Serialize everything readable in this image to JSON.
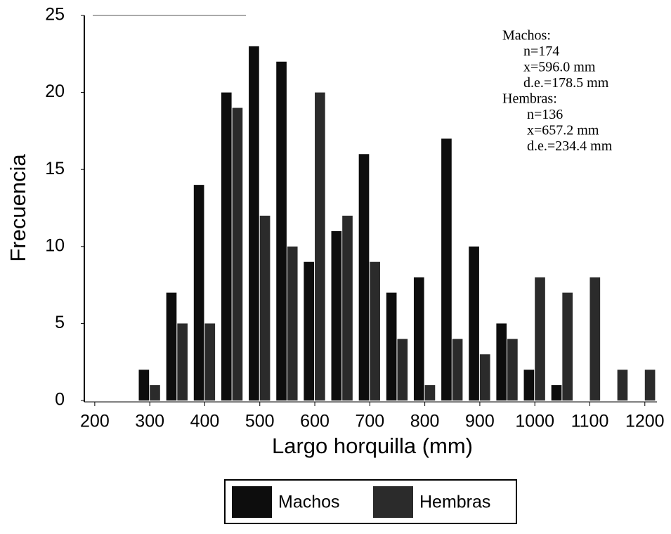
{
  "chart_data": {
    "type": "bar",
    "x": [
      300,
      350,
      400,
      450,
      500,
      550,
      600,
      650,
      700,
      750,
      800,
      850,
      900,
      950,
      1000,
      1050,
      1100,
      1150,
      1200
    ],
    "series": [
      {
        "name": "Machos",
        "color": "#0d0d0d",
        "values": [
          2,
          7,
          14,
          20,
          23,
          22,
          9,
          11,
          16,
          7,
          8,
          17,
          10,
          5,
          2,
          1,
          0,
          0,
          0
        ]
      },
      {
        "name": "Hembras",
        "color": "#2b2b2b",
        "values": [
          1,
          5,
          5,
          19,
          12,
          10,
          20,
          12,
          9,
          4,
          1,
          4,
          3,
          4,
          8,
          7,
          8,
          2,
          2
        ]
      }
    ],
    "xlim": [
      181,
      1222
    ],
    "ylim": [
      0,
      25
    ],
    "xticks": [
      200,
      300,
      400,
      500,
      600,
      700,
      800,
      900,
      1000,
      1100,
      1200
    ],
    "yticks": [
      0,
      5,
      10,
      15,
      20,
      25
    ],
    "xlabel": "Largo horquilla (mm)",
    "ylabel": "Frecuencia",
    "annotations": [
      "Machos:",
      "n=174",
      "x=596.0 mm",
      "d.e.=178.5 mm",
      "Hembras:",
      "n=136",
      "x=657.2 mm",
      "d.e.=234.4 mm"
    ],
    "legend": "bottom"
  }
}
